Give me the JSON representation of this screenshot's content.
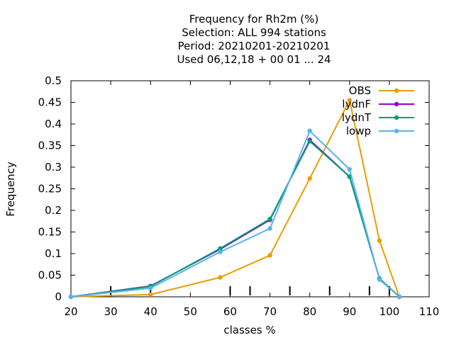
{
  "chart_data": {
    "type": "line",
    "title_lines": [
      "Frequency  for Rh2m (%)",
      "Selection: ALL    994 stations",
      "Period: 20210201-20210201",
      "Used  06,12,18  + 00 01 ... 24"
    ],
    "xlabel": "classes %",
    "ylabel": "Frequency",
    "xlim": [
      20,
      110
    ],
    "ylim": [
      0,
      0.5
    ],
    "xticks": [
      20,
      30,
      40,
      50,
      60,
      70,
      80,
      90,
      100,
      110
    ],
    "yticks": [
      0,
      0.05,
      0.1,
      0.15,
      0.2,
      0.25,
      0.3,
      0.35,
      0.4,
      0.45,
      0.5
    ],
    "ytick_labels": [
      "0",
      "0.05",
      "0.1",
      "0.15",
      "0.2",
      "0.25",
      "0.3",
      "0.35",
      "0.4",
      "0.45",
      "0.5"
    ],
    "minor_marks_x": [
      30,
      40,
      60,
      65,
      75,
      85,
      95,
      100
    ],
    "grid": false,
    "legend_position": "top-right",
    "series": [
      {
        "name": "OBS",
        "color": "#e69f00",
        "x": [
          20,
          40,
          57.5,
          70,
          80,
          90,
          97.5,
          102.5
        ],
        "y": [
          0.0,
          0.005,
          0.045,
          0.096,
          0.274,
          0.455,
          0.13,
          0.0
        ]
      },
      {
        "name": "lydnF",
        "color": "#9400d3",
        "x": [
          20,
          40,
          57.5,
          70,
          80,
          90,
          97.5,
          102.5
        ],
        "y": [
          0.0,
          0.025,
          0.11,
          0.178,
          0.363,
          0.278,
          0.042,
          0.0
        ]
      },
      {
        "name": "lydnT",
        "color": "#009e73",
        "x": [
          20,
          40,
          57.5,
          70,
          80,
          90,
          97.5,
          102.5
        ],
        "y": [
          0.0,
          0.024,
          0.112,
          0.18,
          0.36,
          0.278,
          0.042,
          0.0
        ]
      },
      {
        "name": "lowp",
        "color": "#56b4e9",
        "x": [
          20,
          40,
          57.5,
          70,
          80,
          90,
          97.5,
          102.5
        ],
        "y": [
          0.0,
          0.02,
          0.104,
          0.158,
          0.384,
          0.295,
          0.04,
          0.0
        ]
      }
    ]
  }
}
